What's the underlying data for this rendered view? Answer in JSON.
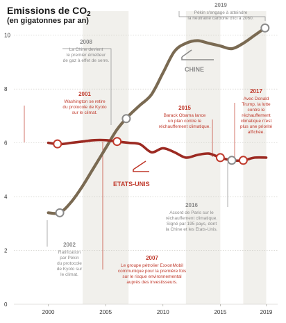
{
  "chart_data": {
    "type": "line",
    "title": "Emissions de CO",
    "title_subscript": "2",
    "subtitle": "(en gigatonnes par an)",
    "xlim": [
      1997,
      2020
    ],
    "ylim": [
      0,
      11
    ],
    "x_ticks": [
      2000,
      2005,
      2010,
      2015,
      2019
    ],
    "y_ticks": [
      0,
      2,
      4,
      6,
      8,
      10
    ],
    "grid": "horizontal dashed",
    "shaded_bands": [
      [
        2003,
        2007
      ],
      [
        2012,
        2015
      ],
      [
        2017,
        2019
      ]
    ],
    "colors": {
      "chine": "#7a6a52",
      "chine_label": "#8a8a8a",
      "usa": "#9c2a22",
      "annotation": "#c0392b",
      "annotation_gray": "#8a8a8a"
    },
    "series": [
      {
        "key": "chine",
        "name": "CHINE",
        "x": [
          2000,
          2001,
          2002,
          2003,
          2004,
          2005,
          2006,
          2007,
          2008,
          2009,
          2010,
          2011,
          2012,
          2013,
          2014,
          2015,
          2016,
          2017,
          2018,
          2019
        ],
        "y": [
          3.4,
          3.4,
          3.8,
          4.4,
          5.1,
          5.8,
          6.5,
          7.0,
          7.4,
          7.8,
          8.6,
          9.4,
          9.7,
          9.8,
          9.7,
          9.6,
          9.5,
          9.7,
          10.0,
          10.3
        ]
      },
      {
        "key": "usa",
        "name": "ETATS-UNIS",
        "x": [
          2000,
          2001,
          2002,
          2003,
          2004,
          2005,
          2006,
          2007,
          2008,
          2009,
          2010,
          2011,
          2012,
          2013,
          2014,
          2015,
          2016,
          2017,
          2018,
          2019
        ],
        "y": [
          6.0,
          5.95,
          6.0,
          6.05,
          6.1,
          6.1,
          6.05,
          6.0,
          5.95,
          5.65,
          5.8,
          5.65,
          5.45,
          5.55,
          5.6,
          5.45,
          5.35,
          5.35,
          5.45,
          5.45
        ]
      }
    ],
    "annotations": [
      {
        "year": "2001",
        "color": "red",
        "text": [
          "Washington se retire",
          "du protocole de Kyoto",
          "sur le climat."
        ]
      },
      {
        "year": "2002",
        "color": "gray",
        "text": [
          "Ratification",
          "par Pékin",
          "du protocole",
          "de Kyoto sur",
          "le climat."
        ]
      },
      {
        "year": "2007",
        "color": "red",
        "text": [
          "Le groupe pétrolier ExxonMobil",
          "communique pour la première fois",
          "sur le risque environnemental",
          "auprès des investisseurs."
        ]
      },
      {
        "year": "2008",
        "color": "gray",
        "text": [
          "La Chine devient",
          "le premier émetteur",
          "de gaz à effet de serre."
        ]
      },
      {
        "year": "2015",
        "color": "red",
        "text": [
          "Barack Obama lance",
          "un plan contre le",
          "réchauffement climatique."
        ]
      },
      {
        "year": "2016",
        "color": "gray",
        "text": [
          "Accord de Paris sur le",
          "réchauffement climatique.",
          "Signé par 195 pays, dont",
          "la Chine et les Etats-Unis."
        ]
      },
      {
        "year": "2017",
        "color": "red",
        "text": [
          "Avec Donald",
          "Trump, la lutte",
          "contre le",
          "réchauffement",
          "climatique n'est",
          "plus une priorité",
          "affichée."
        ]
      },
      {
        "year": "2019",
        "color": "gray",
        "text": [
          "Pékin s'engage à atteindre",
          "la neutralité carbone d'ici à 2060."
        ]
      }
    ]
  }
}
